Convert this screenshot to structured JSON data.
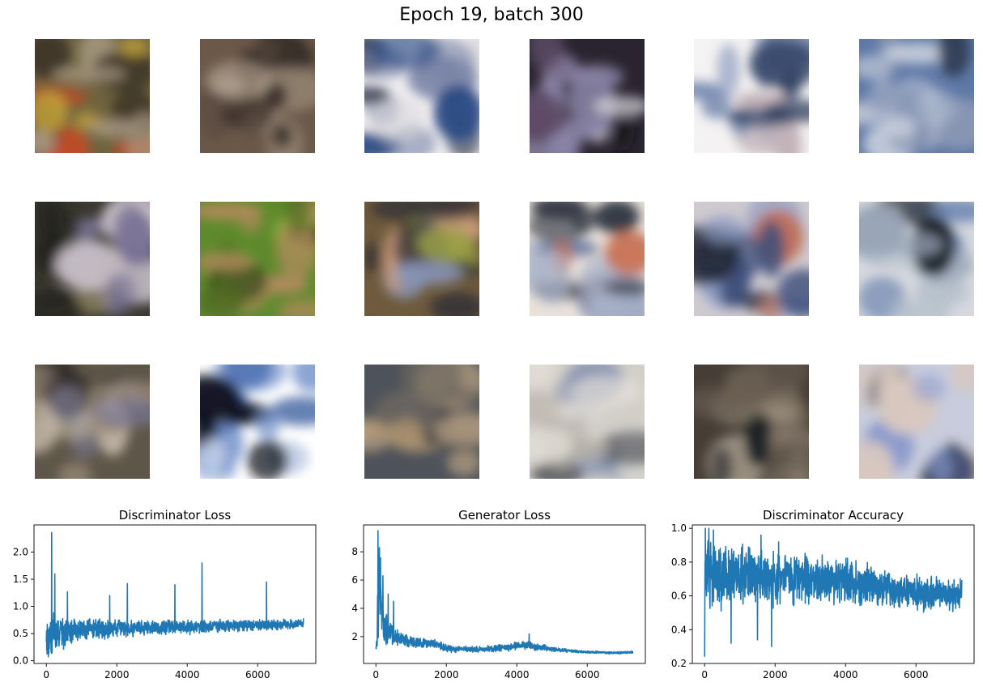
{
  "figure": {
    "title": "Epoch 19, batch 300",
    "line_color": "#1f77b4"
  },
  "samples": {
    "grid": "3x6",
    "tiles": [
      {
        "colors": [
          "#6e6440",
          "#c7a53a",
          "#d2451f",
          "#3c3426",
          "#a79882"
        ]
      },
      {
        "colors": [
          "#6b5848",
          "#3a3028",
          "#9a8a78",
          "#b4a492",
          "#5a4c42"
        ]
      },
      {
        "colors": [
          "#f0eef0",
          "#2e4e86",
          "#1e2436",
          "#d8d6da",
          "#7b86a8"
        ]
      },
      {
        "colors": [
          "#2a2430",
          "#d8d6dc",
          "#5e4c68",
          "#8a84a6",
          "#161418"
        ]
      },
      {
        "colors": [
          "#f4f2f2",
          "#2c3c5e",
          "#7a8eb4",
          "#c2b2b8",
          "#9aa6c4"
        ]
      },
      {
        "colors": [
          "#5e78a6",
          "#aab6cc",
          "#2c3850",
          "#8896b4",
          "#d0d6e0"
        ]
      },
      {
        "colors": [
          "#3a3830",
          "#7a7496",
          "#a89c70",
          "#24241e",
          "#c8c0c8"
        ]
      },
      {
        "colors": [
          "#5e8a2c",
          "#8ca83a",
          "#3a4a1e",
          "#b48a5e",
          "#4e6a20"
        ]
      },
      {
        "colors": [
          "#6e5a3c",
          "#9aa044",
          "#2c2c36",
          "#c89a7a",
          "#8a96b8"
        ]
      },
      {
        "colors": [
          "#e8e2da",
          "#2e3440",
          "#c8765a",
          "#5a6e9a",
          "#a8b2c8"
        ]
      },
      {
        "colors": [
          "#cfcad0",
          "#3c4e7a",
          "#c07058",
          "#1c222e",
          "#8a9ac0"
        ]
      },
      {
        "colors": [
          "#d6d8de",
          "#b8c2cc",
          "#222830",
          "#6e86b0",
          "#9aa6b8"
        ]
      },
      {
        "colors": [
          "#5e5648",
          "#2e2a2a",
          "#9a8a78",
          "#7a7894",
          "#c4b8a8"
        ]
      },
      {
        "colors": [
          "#ffffff",
          "#2a5096",
          "#6c8cc8",
          "#10141e",
          "#c6d2e8"
        ]
      },
      {
        "colors": [
          "#4e525a",
          "#a8906e",
          "#6e6860",
          "#c8ae8a",
          "#3a3c44"
        ]
      },
      {
        "colors": [
          "#d2cec8",
          "#e6e2da",
          "#3a3e48",
          "#8a96b0",
          "#b6b0a8"
        ]
      },
      {
        "colors": [
          "#463e36",
          "#8a7e6e",
          "#1e2226",
          "#b4a898",
          "#6a5e52"
        ]
      },
      {
        "colors": [
          "#c8ccdc",
          "#2a3868",
          "#101628",
          "#8a9acc",
          "#d8c8c0"
        ]
      }
    ]
  },
  "chart_data": [
    {
      "type": "line",
      "title": "Discriminator Loss",
      "xlim": [
        -350,
        7650
      ],
      "ylim": [
        -0.05,
        2.5
      ],
      "xticks": [
        "0",
        "2000",
        "4000",
        "6000"
      ],
      "xtick_values": [
        0,
        2000,
        4000,
        6000
      ],
      "yticks": [
        "0.0",
        "0.5",
        "1.0",
        "1.5",
        "2.0"
      ],
      "ytick_values": [
        0,
        0.5,
        1.0,
        1.5,
        2.0
      ],
      "series": [
        {
          "x": [
            0,
            50,
            100,
            150,
            200,
            250,
            300,
            350,
            400,
            500,
            600,
            700,
            800,
            900,
            1000,
            1200,
            1400,
            1600,
            1800,
            2000,
            2200,
            2400,
            2600,
            2800,
            3000,
            3300,
            3600,
            3900,
            4200,
            4500,
            4800,
            5100,
            5400,
            5700,
            6000,
            6300,
            6600,
            6900,
            7200,
            7300
          ],
          "y": [
            0.5,
            0.35,
            0.55,
            0.3,
            0.6,
            0.4,
            0.55,
            0.45,
            0.6,
            0.5,
            0.55,
            0.52,
            0.58,
            0.55,
            0.6,
            0.57,
            0.62,
            0.58,
            0.6,
            0.6,
            0.62,
            0.6,
            0.61,
            0.62,
            0.62,
            0.61,
            0.63,
            0.62,
            0.63,
            0.63,
            0.64,
            0.64,
            0.65,
            0.65,
            0.66,
            0.66,
            0.67,
            0.67,
            0.68,
            0.68
          ],
          "noise": [
            0.3,
            0.45,
            0.45,
            0.45,
            0.4,
            0.38,
            0.36,
            0.34,
            0.32,
            0.3,
            0.28,
            0.27,
            0.26,
            0.25,
            0.24,
            0.23,
            0.22,
            0.21,
            0.2,
            0.19,
            0.18,
            0.18,
            0.17,
            0.17,
            0.16,
            0.16,
            0.15,
            0.15,
            0.15,
            0.14,
            0.14,
            0.13,
            0.13,
            0.12,
            0.12,
            0.11,
            0.11,
            0.1,
            0.1,
            0.1
          ],
          "spikes": [
            [
              150,
              2.36
            ],
            [
              240,
              1.6
            ],
            [
              600,
              1.27
            ],
            [
              1800,
              1.2
            ],
            [
              2300,
              1.42
            ],
            [
              3650,
              1.4
            ],
            [
              4420,
              1.8
            ],
            [
              6250,
              1.45
            ],
            [
              7300,
              0.78
            ]
          ]
        }
      ]
    },
    {
      "type": "line",
      "title": "Generator Loss",
      "xlim": [
        -350,
        7650
      ],
      "ylim": [
        0.1,
        9.9
      ],
      "xticks": [
        "0",
        "2000",
        "4000",
        "6000"
      ],
      "xtick_values": [
        0,
        2000,
        4000,
        6000
      ],
      "yticks": [
        "2",
        "4",
        "6",
        "8"
      ],
      "ytick_values": [
        2,
        4,
        6,
        8
      ],
      "series": [
        {
          "x": [
            0,
            50,
            100,
            150,
            200,
            250,
            300,
            350,
            400,
            500,
            600,
            700,
            800,
            900,
            1000,
            1200,
            1400,
            1600,
            1800,
            2000,
            2200,
            2400,
            2600,
            2800,
            3000,
            3300,
            3600,
            3900,
            4200,
            4500,
            4800,
            5100,
            5400,
            5700,
            6000,
            6300,
            6600,
            6900,
            7200,
            7300
          ],
          "y": [
            1.0,
            3.5,
            6.0,
            4.5,
            3.5,
            3.0,
            2.5,
            2.4,
            2.2,
            2.0,
            1.9,
            1.8,
            1.8,
            1.7,
            1.6,
            1.6,
            1.5,
            1.5,
            1.4,
            1.2,
            1.1,
            1.1,
            1.1,
            1.1,
            1.1,
            1.15,
            1.2,
            1.3,
            1.4,
            1.3,
            1.2,
            1.1,
            1.0,
            0.95,
            0.9,
            0.9,
            0.85,
            0.85,
            0.9,
            0.9
          ],
          "noise": [
            0.8,
            3.0,
            3.0,
            2.5,
            2.0,
            1.5,
            1.2,
            1.1,
            1.0,
            0.8,
            0.7,
            0.6,
            0.55,
            0.5,
            0.45,
            0.4,
            0.4,
            0.35,
            0.35,
            0.3,
            0.25,
            0.25,
            0.25,
            0.25,
            0.25,
            0.25,
            0.3,
            0.3,
            0.35,
            0.3,
            0.25,
            0.2,
            0.15,
            0.12,
            0.1,
            0.1,
            0.1,
            0.1,
            0.1,
            0.1
          ],
          "spikes": [
            [
              60,
              9.5
            ],
            [
              100,
              8.3
            ],
            [
              200,
              6.3
            ],
            [
              350,
              5.0
            ],
            [
              500,
              4.5
            ],
            [
              4350,
              2.2
            ]
          ]
        }
      ]
    },
    {
      "type": "line",
      "title": "Discriminator Accuracy",
      "xlim": [
        -350,
        7650
      ],
      "ylim": [
        0.2,
        1.02
      ],
      "xticks": [
        "0",
        "2000",
        "4000",
        "6000"
      ],
      "xtick_values": [
        0,
        2000,
        4000,
        6000
      ],
      "yticks": [
        "0.2",
        "0.4",
        "0.6",
        "0.8",
        "1.0"
      ],
      "ytick_values": [
        0.2,
        0.4,
        0.6,
        0.8,
        1.0
      ],
      "series": [
        {
          "x": [
            0,
            50,
            100,
            150,
            200,
            250,
            300,
            350,
            400,
            500,
            600,
            700,
            800,
            900,
            1000,
            1200,
            1400,
            1600,
            1800,
            2000,
            2200,
            2400,
            2600,
            2800,
            3000,
            3300,
            3600,
            3900,
            4200,
            4500,
            4800,
            5100,
            5400,
            5700,
            6000,
            6300,
            6600,
            6900,
            7200,
            7300
          ],
          "y": [
            0.65,
            0.75,
            0.78,
            0.76,
            0.74,
            0.73,
            0.72,
            0.72,
            0.71,
            0.71,
            0.72,
            0.7,
            0.72,
            0.71,
            0.72,
            0.7,
            0.72,
            0.7,
            0.71,
            0.7,
            0.71,
            0.7,
            0.7,
            0.7,
            0.69,
            0.69,
            0.69,
            0.69,
            0.68,
            0.67,
            0.66,
            0.64,
            0.63,
            0.62,
            0.62,
            0.61,
            0.61,
            0.61,
            0.6,
            0.62
          ],
          "noise": [
            0.3,
            0.26,
            0.24,
            0.24,
            0.24,
            0.23,
            0.23,
            0.22,
            0.22,
            0.22,
            0.21,
            0.21,
            0.21,
            0.2,
            0.2,
            0.2,
            0.2,
            0.19,
            0.19,
            0.19,
            0.18,
            0.18,
            0.18,
            0.17,
            0.17,
            0.16,
            0.16,
            0.15,
            0.15,
            0.14,
            0.13,
            0.13,
            0.12,
            0.12,
            0.12,
            0.11,
            0.11,
            0.11,
            0.11,
            0.1
          ],
          "spikes": [
            [
              0,
              0.24
            ],
            [
              20,
              1.0
            ],
            [
              120,
              1.0
            ],
            [
              250,
              0.99
            ],
            [
              750,
              0.32
            ],
            [
              1500,
              0.34
            ],
            [
              1600,
              0.96
            ],
            [
              1900,
              0.3
            ],
            [
              2100,
              0.92
            ]
          ]
        }
      ]
    }
  ]
}
